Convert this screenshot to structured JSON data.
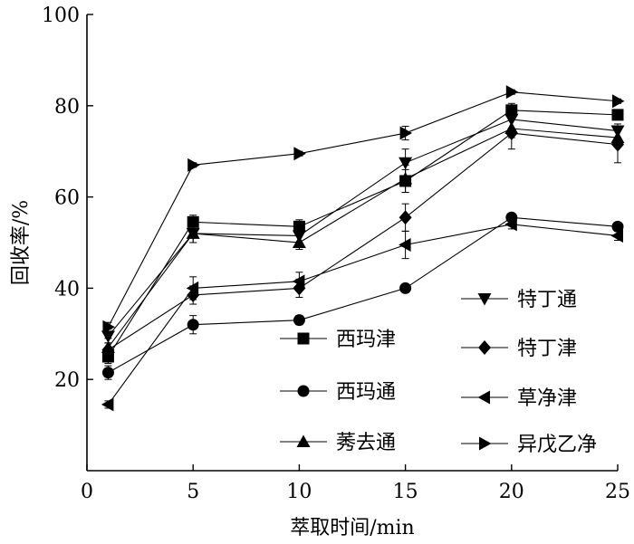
{
  "chart_data": {
    "type": "line",
    "title": "",
    "xlabel": "萃取时间/min",
    "ylabel": "回收率/%",
    "xlim": [
      0,
      25
    ],
    "ylim": [
      0,
      100
    ],
    "xticks": [
      0,
      5,
      10,
      15,
      20,
      25
    ],
    "yticks": [
      20,
      40,
      60,
      80,
      100
    ],
    "x_tick_labels": [
      "0",
      "5",
      "10",
      "15",
      "20",
      "25"
    ],
    "y_tick_labels": [
      "20",
      "40",
      "60",
      "80",
      "100"
    ],
    "grid": false,
    "x": [
      1,
      5,
      10,
      15,
      20,
      25
    ],
    "series": [
      {
        "name": "西玛津",
        "marker": "square",
        "values": [
          25,
          54.5,
          53.5,
          63.5,
          79,
          78
        ],
        "errors": [
          1.5,
          1.5,
          1.5,
          2.5,
          1.5,
          1
        ]
      },
      {
        "name": "西玛通",
        "marker": "circle",
        "values": [
          21.5,
          32,
          33,
          40,
          55.5,
          53.5
        ],
        "errors": [
          1.5,
          2,
          1,
          0.5,
          0.8,
          0.8
        ]
      },
      {
        "name": "莠去通",
        "marker": "triangle-up",
        "values": [
          27,
          52,
          50,
          64,
          75,
          73
        ],
        "errors": [
          2,
          2,
          1.5,
          3,
          2,
          1.5
        ]
      },
      {
        "name": "特丁通",
        "marker": "triangle-down",
        "values": [
          29.5,
          52,
          51.5,
          67.5,
          77,
          74.5
        ],
        "errors": [
          1.5,
          2,
          1.5,
          3,
          2,
          1.5
        ]
      },
      {
        "name": "特丁津",
        "marker": "diamond",
        "values": [
          26.5,
          38.5,
          40,
          55.5,
          74,
          71.5
        ],
        "errors": [
          1.5,
          2,
          2,
          3,
          3.5,
          4
        ]
      },
      {
        "name": "草净津",
        "marker": "triangle-left",
        "values": [
          14.5,
          40,
          41.5,
          49.5,
          54,
          51.5
        ],
        "errors": [
          0.8,
          2.5,
          2,
          3,
          1,
          1
        ]
      },
      {
        "name": "异戊乙净",
        "marker": "triangle-right",
        "values": [
          31.5,
          67,
          69.5,
          74,
          83,
          81
        ],
        "errors": [
          1,
          0.5,
          0.5,
          1.5,
          0.5,
          0.5
        ]
      }
    ],
    "legend_placement": "lower-right, two columns"
  }
}
